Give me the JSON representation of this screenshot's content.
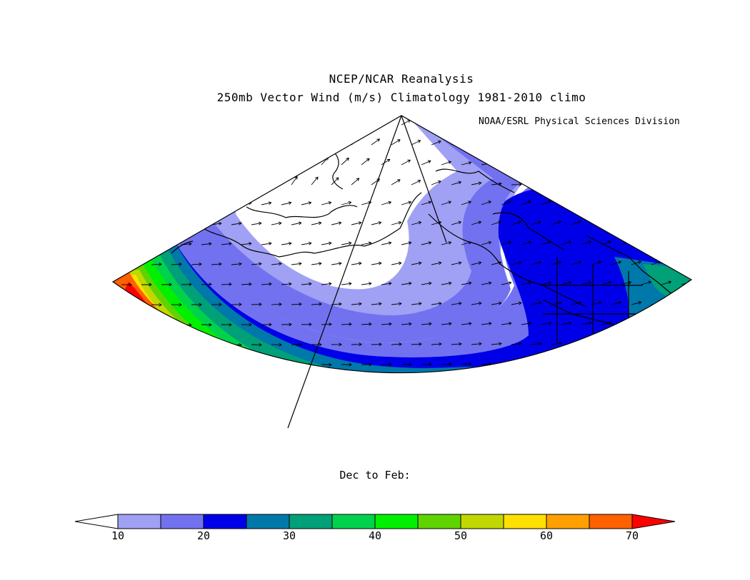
{
  "title": {
    "line1": "NCEP/NCAR Reanalysis",
    "line2": "250mb Vector Wind (m/s) Climatology 1981-2010 climo"
  },
  "credit": "NOAA/ESRL Physical Sciences Division",
  "season": "Dec to Feb:",
  "colorbar": {
    "bins": [
      {
        "from": 10,
        "to": 15,
        "color": "#a0a0f5"
      },
      {
        "from": 15,
        "to": 20,
        "color": "#7272f0"
      },
      {
        "from": 20,
        "to": 25,
        "color": "#0000e8"
      },
      {
        "from": 25,
        "to": 30,
        "color": "#0078aa"
      },
      {
        "from": 30,
        "to": 35,
        "color": "#00a078"
      },
      {
        "from": 35,
        "to": 40,
        "color": "#00d24c"
      },
      {
        "from": 40,
        "to": 45,
        "color": "#00f000"
      },
      {
        "from": 45,
        "to": 50,
        "color": "#60d400"
      },
      {
        "from": 50,
        "to": 55,
        "color": "#c0d800"
      },
      {
        "from": 55,
        "to": 60,
        "color": "#ffe000"
      },
      {
        "from": 60,
        "to": 65,
        "color": "#ffa000"
      },
      {
        "from": 65,
        "to": 70,
        "color": "#ff6000"
      }
    ],
    "under_color": "#ffffff",
    "over_color": "#ff0000",
    "tick_labels": [
      "10",
      "20",
      "30",
      "40",
      "50",
      "60",
      "70"
    ]
  },
  "map": {
    "projection": "conic sector",
    "region": "North Pacific / Alaska / western North America",
    "field": "250mb vector wind speed (m/s)",
    "vectors": "arrows indicate wind direction"
  }
}
